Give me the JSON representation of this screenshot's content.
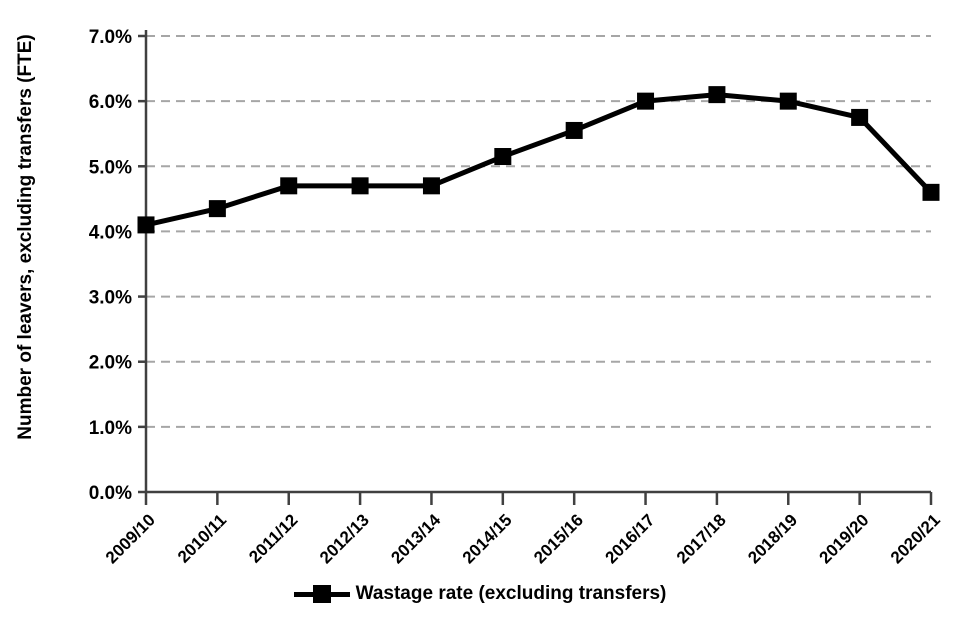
{
  "chart_data": {
    "type": "line",
    "title": "",
    "categories": [
      "2009/10",
      "2010/11",
      "2011/12",
      "2012/13",
      "2013/14",
      "2014/15",
      "2015/16",
      "2016/17",
      "2017/18",
      "2018/19",
      "2019/20",
      "2020/21"
    ],
    "series": [
      {
        "name": "Wastage rate (excluding transfers)",
        "values": [
          4.1,
          4.35,
          4.7,
          4.7,
          4.7,
          5.15,
          5.55,
          6.0,
          6.1,
          6.0,
          5.75,
          4.6
        ],
        "color": "#000000",
        "marker": "filled-square"
      }
    ],
    "xlabel": "",
    "ylabel": "Number of leavers, excluding transfers (FTE)",
    "ylim": [
      0,
      7
    ],
    "ytick_labels": [
      "0.0%",
      "1.0%",
      "2.0%",
      "3.0%",
      "4.0%",
      "5.0%",
      "6.0%",
      "7.0%"
    ],
    "grid": "horizontal-dashed",
    "legend_position": "bottom-center",
    "colors": {
      "background": "#ffffff",
      "gridline": "#a6a6a6",
      "axis": "#404040",
      "text": "#000000",
      "series": "#000000"
    }
  }
}
